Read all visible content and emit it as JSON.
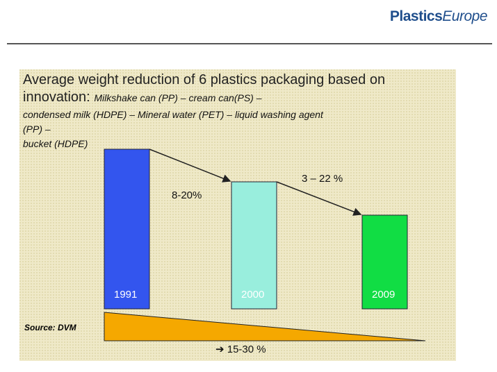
{
  "header": {
    "logo": {
      "bold": "Plastics",
      "italic": "Europe"
    }
  },
  "title": {
    "line": "Average weight reduction of 6 plastics packaging based on",
    "lead": "innovation:",
    "items": [
      "Milkshake can (PP) – cream can(PS) –",
      "condensed milk (HDPE) –  Mineral water (PET) – liquid washing agent",
      "(PP) –",
      "bucket (HDPE)"
    ]
  },
  "bars": [
    {
      "label": "1991"
    },
    {
      "label": "2000"
    },
    {
      "label": "2009"
    }
  ],
  "steps": [
    "8-20%",
    "3 – 22 %"
  ],
  "source": "Source: DVM",
  "total": "➔ 15-30 %"
}
